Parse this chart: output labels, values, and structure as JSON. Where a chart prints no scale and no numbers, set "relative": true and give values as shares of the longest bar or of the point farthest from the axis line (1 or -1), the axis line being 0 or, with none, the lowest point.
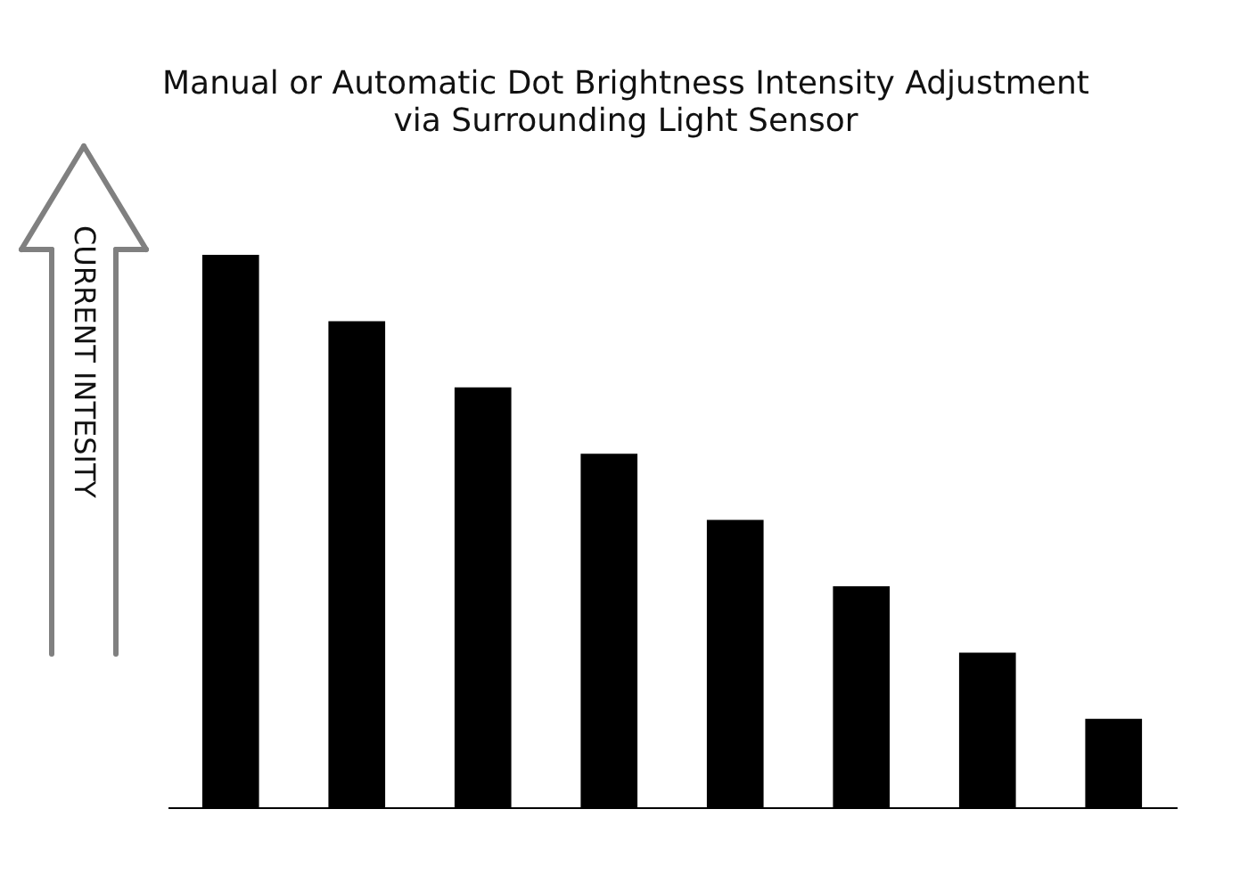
{
  "chart_data": {
    "type": "bar",
    "title": "Manual or Automatic Dot Brightness Intensity Adjustment\nvia Surrounding Light Sensor",
    "ylabel": "CURRENT INTESITY",
    "categories": [
      null,
      null,
      null,
      null,
      null,
      null,
      null,
      null
    ],
    "values": [
      1,
      0.88,
      0.76,
      0.64,
      0.52,
      0.4,
      0.28,
      0.16
    ],
    "color": "#000000",
    "relative": true
  }
}
